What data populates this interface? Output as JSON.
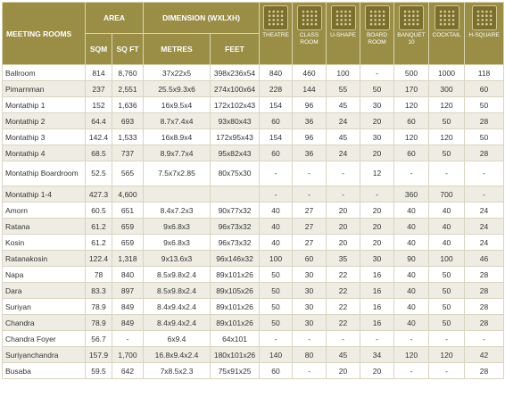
{
  "header": {
    "meeting_rooms": "MEETING ROOMS",
    "area": "AREA",
    "dimension": "DIMENSION (WXLXH)",
    "sub": [
      "SQM",
      "SQ FT",
      "METRES",
      "FEET"
    ],
    "layouts": [
      "THEATRE",
      "CLASS ROOM",
      "U-SHAPE",
      "BOARD ROOM",
      "BANQUET 10",
      "COCKTAIL",
      "H-SQUARE"
    ]
  },
  "table": {
    "rows": [
      [
        "Ballroom",
        "814",
        "8,760",
        "37x22x5",
        "398x236x54",
        "840",
        "460",
        "100",
        "-",
        "500",
        "1000",
        "118"
      ],
      [
        "Pimarnman",
        "237",
        "2,551",
        "25.5x9.3x6",
        "274x100x64",
        "228",
        "144",
        "55",
        "50",
        "170",
        "300",
        "60"
      ],
      [
        "Montathip 1",
        "152",
        "1,636",
        "16x9.5x4",
        "172x102x43",
        "154",
        "96",
        "45",
        "30",
        "120",
        "120",
        "50"
      ],
      [
        "Montathip 2",
        "64.4",
        "693",
        "8.7x7.4x4",
        "93x80x43",
        "60",
        "36",
        "24",
        "20",
        "60",
        "50",
        "28"
      ],
      [
        "Montathip 3",
        "142.4",
        "1,533",
        "16x8.9x4",
        "172x95x43",
        "154",
        "96",
        "45",
        "30",
        "120",
        "120",
        "50"
      ],
      [
        "Montathip 4",
        "68.5",
        "737",
        "8.9x7.7x4",
        "95x82x43",
        "60",
        "36",
        "24",
        "20",
        "60",
        "50",
        "28"
      ],
      [
        "Montathip Boardroom",
        "52.5",
        "565",
        "7.5x7x2.85",
        "80x75x30",
        "-",
        "-",
        "-",
        "12",
        "-",
        "-",
        "-"
      ],
      [
        "Montathip 1-4",
        "427.3",
        "4,600",
        null,
        null,
        "-",
        "-",
        "-",
        "-",
        "360",
        "700",
        "-"
      ],
      [
        "Amorn",
        "60.5",
        "651",
        "8.4x7.2x3",
        "90x77x32",
        "40",
        "27",
        "20",
        "20",
        "40",
        "40",
        "24"
      ],
      [
        "Ratana",
        "61.2",
        "659",
        "9x6.8x3",
        "96x73x32",
        "40",
        "27",
        "20",
        "20",
        "40",
        "40",
        "24"
      ],
      [
        "Kosin",
        "61.2",
        "659",
        "9x6.8x3",
        "96x73x32",
        "40",
        "27",
        "20",
        "20",
        "40",
        "40",
        "24"
      ],
      [
        "Ratanakosin",
        "122.4",
        "1,318",
        "9x13.6x3",
        "96x146x32",
        "100",
        "60",
        "35",
        "30",
        "90",
        "100",
        "46"
      ],
      [
        "Napa",
        "78",
        "840",
        "8.5x9.8x2.4",
        "89x101x26",
        "50",
        "30",
        "22",
        "16",
        "40",
        "50",
        "28"
      ],
      [
        "Dara",
        "83.3",
        "897",
        "8.5x9.8x2.4",
        "89x105x26",
        "50",
        "30",
        "22",
        "16",
        "40",
        "50",
        "28"
      ],
      [
        "Suriyan",
        "78.9",
        "849",
        "8.4x9.4x2.4",
        "89x101x26",
        "50",
        "30",
        "22",
        "16",
        "40",
        "50",
        "28"
      ],
      [
        "Chandra",
        "78.9",
        "849",
        "8.4x9.4x2.4",
        "89x101x26",
        "50",
        "30",
        "22",
        "16",
        "40",
        "50",
        "28"
      ],
      [
        "Chandra Foyer",
        "56.7",
        "-",
        "6x9.4",
        "64x101",
        "-",
        "-",
        "-",
        "-",
        "-",
        "-",
        "-"
      ],
      [
        "Suriyanchandra",
        "157.9",
        "1,700",
        "16.8x9.4x2.4",
        "180x101x26",
        "140",
        "80",
        "45",
        "34",
        "120",
        "120",
        "42"
      ],
      [
        "Busaba",
        "59.5",
        "642",
        "7x8.5x2.3",
        "75x91x25",
        "60",
        "-",
        "20",
        "20",
        "-",
        "-",
        "28"
      ]
    ]
  }
}
